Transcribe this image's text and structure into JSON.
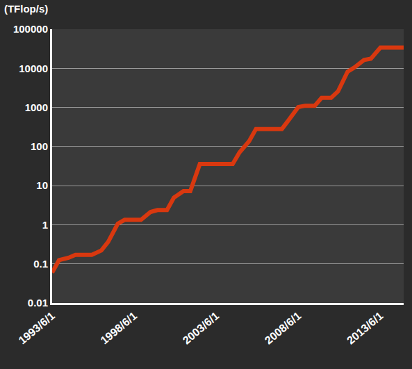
{
  "chart_data": {
    "type": "line",
    "title": "(TFlop/s)",
    "x": [
      "1993-06-01",
      "1993-11-01",
      "1994-06-01",
      "1994-11-01",
      "1995-06-01",
      "1995-11-01",
      "1996-06-01",
      "1996-11-01",
      "1997-06-01",
      "1997-11-01",
      "1998-06-01",
      "1998-11-01",
      "1999-06-01",
      "1999-11-01",
      "2000-06-01",
      "2000-11-01",
      "2001-06-01",
      "2001-11-01",
      "2002-06-01",
      "2002-11-01",
      "2003-06-01",
      "2003-11-01",
      "2004-06-01",
      "2004-11-01",
      "2005-06-01",
      "2005-11-01",
      "2006-06-01",
      "2006-11-01",
      "2007-06-01",
      "2007-11-01",
      "2008-06-01",
      "2008-11-01",
      "2009-06-01",
      "2009-11-01",
      "2010-06-01",
      "2010-11-01",
      "2011-06-01",
      "2011-11-01",
      "2012-06-01",
      "2012-11-01",
      "2013-06-01",
      "2013-11-01",
      "2014-06-01",
      "2014-11-01"
    ],
    "values": [
      0.0597,
      0.124,
      0.143,
      0.17,
      0.17,
      0.17,
      0.2205,
      0.368,
      1.068,
      1.338,
      1.338,
      1.338,
      2.121,
      2.379,
      2.379,
      4.938,
      7.226,
      7.226,
      35.86,
      35.86,
      35.86,
      35.86,
      35.86,
      70.72,
      136.8,
      280.6,
      280.6,
      280.6,
      280.6,
      478.2,
      1026,
      1105,
      1105,
      1759,
      1759,
      2566,
      8162,
      10510,
      16324,
      17590,
      33863,
      33863,
      33863,
      33863
    ],
    "color": "#d9380f",
    "log": "y",
    "grid": true,
    "xlim": [
      "1993-06-01",
      "2014-11-01"
    ],
    "xticks": [
      {
        "value": "1993-06-01",
        "label": "1993/6/1"
      },
      {
        "value": "1998-06-01",
        "label": "1998/6/1"
      },
      {
        "value": "2003-06-01",
        "label": "2003/6/1"
      },
      {
        "value": "2008-06-01",
        "label": "2008/6/1"
      },
      {
        "value": "2013-06-01",
        "label": "2013/6/1"
      }
    ],
    "ylim": [
      0.01,
      100000
    ],
    "yticks": [
      0.01,
      0.1,
      1,
      10,
      100,
      1000,
      10000,
      100000
    ]
  }
}
